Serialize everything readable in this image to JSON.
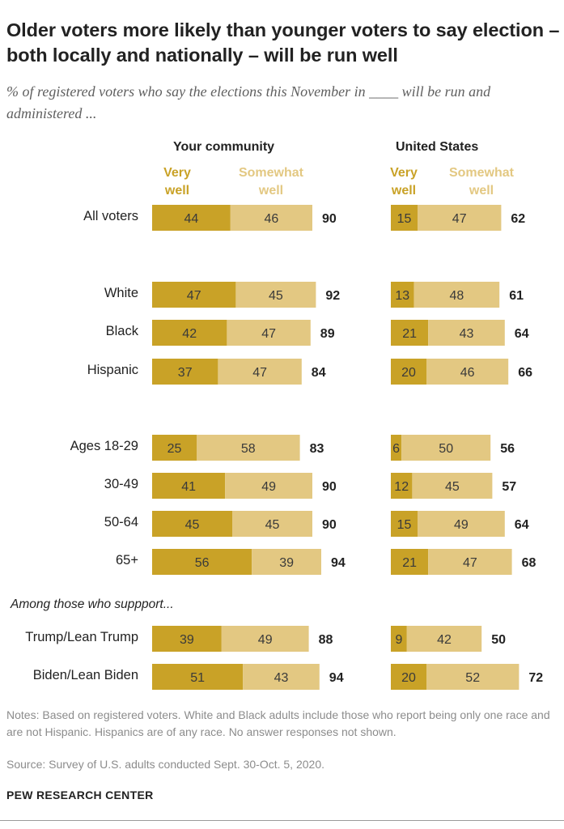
{
  "title": "Older voters more likely than younger voters to say election – both locally and nationally – will be run well",
  "subtitle": "% of registered voters who say the elections this November in ____ will be run and administered ...",
  "panels": {
    "left": "Your community",
    "right": "United States"
  },
  "legend": {
    "very_left": "Very well",
    "some_left": "Somewhat well",
    "very_right": "Very well",
    "some_right": "Somewhat well"
  },
  "section_note": "Among those who suppport...",
  "notes": "Notes: Based on registered voters. White and Black adults include those who report being only one race and are not Hispanic. Hispanics are of any race. No answer responses not shown.",
  "source": "Source: Survey of U.S. adults conducted Sept. 30-Oct. 5, 2020.",
  "brand": "PEW RESEARCH CENTER",
  "colors": {
    "very_well": "#c9a227",
    "somewhat_well": "#e3c882",
    "text": "#222222",
    "notes": "#8c8c8c"
  },
  "chart_data": {
    "type": "bar",
    "stacked": true,
    "orientation": "horizontal",
    "categories": [
      "All voters",
      "White",
      "Black",
      "Hispanic",
      "Ages 18-29",
      "30-49",
      "50-64",
      "65+",
      "Trump/Lean Trump",
      "Biden/Lean Biden"
    ],
    "panels": [
      {
        "name": "Your community",
        "series": [
          {
            "name": "Very well",
            "values": [
              44,
              47,
              42,
              37,
              25,
              41,
              45,
              56,
              39,
              51
            ]
          },
          {
            "name": "Somewhat well",
            "values": [
              46,
              45,
              47,
              47,
              58,
              49,
              45,
              39,
              49,
              43
            ]
          }
        ],
        "totals": [
          90,
          92,
          89,
          84,
          83,
          90,
          90,
          94,
          88,
          94
        ]
      },
      {
        "name": "United States",
        "series": [
          {
            "name": "Very well",
            "values": [
              15,
              13,
              21,
              20,
              6,
              12,
              15,
              21,
              9,
              20
            ]
          },
          {
            "name": "Somewhat well",
            "values": [
              47,
              48,
              43,
              46,
              50,
              45,
              49,
              47,
              42,
              52
            ]
          }
        ],
        "totals": [
          62,
          61,
          64,
          66,
          56,
          57,
          64,
          68,
          50,
          72
        ]
      }
    ]
  }
}
